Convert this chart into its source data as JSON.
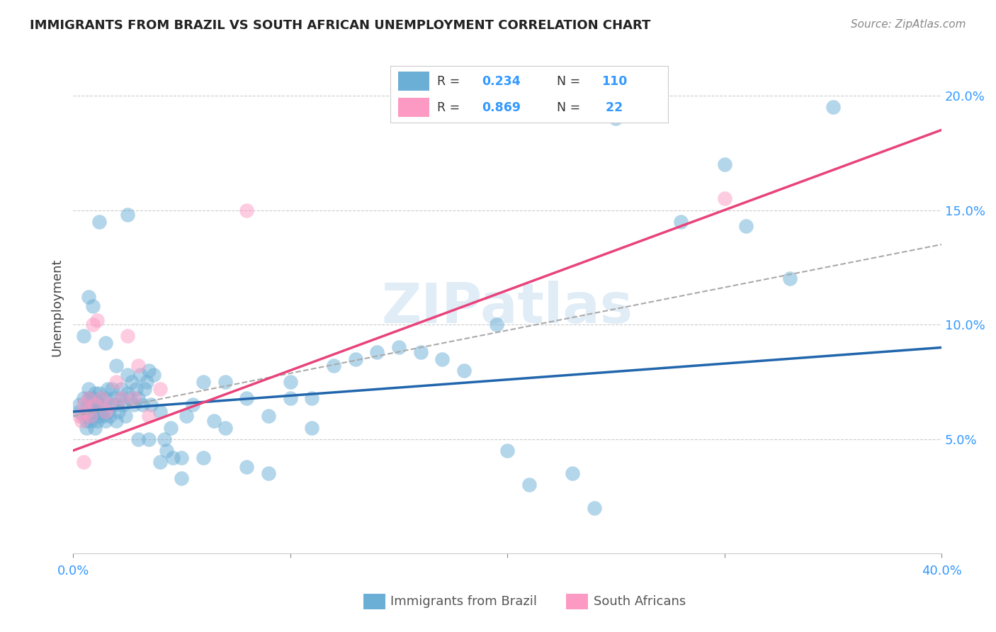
{
  "title": "IMMIGRANTS FROM BRAZIL VS SOUTH AFRICAN UNEMPLOYMENT CORRELATION CHART",
  "source": "Source: ZipAtlas.com",
  "ylabel": "Unemployment",
  "yticks": [
    0.05,
    0.1,
    0.15,
    0.2
  ],
  "ytick_labels": [
    "5.0%",
    "10.0%",
    "15.0%",
    "20.0%"
  ],
  "xlim": [
    0.0,
    0.4
  ],
  "ylim": [
    0.0,
    0.215
  ],
  "blue_color": "#6baed6",
  "pink_color": "#fc9ac3",
  "blue_line_color": "#2166ac",
  "pink_line_color": "#e8437a",
  "dash_line_color": "#aaaaaa",
  "watermark": "ZIPatlas",
  "blue_scatter_x": [
    0.003,
    0.003,
    0.005,
    0.005,
    0.006,
    0.006,
    0.006,
    0.007,
    0.007,
    0.007,
    0.007,
    0.008,
    0.008,
    0.008,
    0.009,
    0.009,
    0.009,
    0.01,
    0.01,
    0.01,
    0.01,
    0.011,
    0.011,
    0.011,
    0.012,
    0.012,
    0.012,
    0.013,
    0.013,
    0.014,
    0.014,
    0.015,
    0.015,
    0.016,
    0.016,
    0.017,
    0.018,
    0.018,
    0.019,
    0.02,
    0.02,
    0.021,
    0.022,
    0.022,
    0.023,
    0.024,
    0.025,
    0.025,
    0.026,
    0.027,
    0.028,
    0.029,
    0.03,
    0.031,
    0.032,
    0.033,
    0.034,
    0.035,
    0.036,
    0.037,
    0.04,
    0.042,
    0.043,
    0.045,
    0.046,
    0.05,
    0.052,
    0.055,
    0.06,
    0.065,
    0.07,
    0.08,
    0.09,
    0.1,
    0.11,
    0.12,
    0.13,
    0.14,
    0.15,
    0.16,
    0.17,
    0.18,
    0.195,
    0.2,
    0.21,
    0.23,
    0.24,
    0.25,
    0.28,
    0.3,
    0.31,
    0.33,
    0.35,
    0.005,
    0.007,
    0.009,
    0.012,
    0.015,
    0.02,
    0.025,
    0.03,
    0.035,
    0.04,
    0.05,
    0.06,
    0.07,
    0.08,
    0.09,
    0.1,
    0.11
  ],
  "blue_scatter_y": [
    0.062,
    0.065,
    0.06,
    0.068,
    0.055,
    0.058,
    0.062,
    0.06,
    0.065,
    0.068,
    0.072,
    0.058,
    0.062,
    0.068,
    0.06,
    0.064,
    0.068,
    0.055,
    0.062,
    0.065,
    0.07,
    0.058,
    0.062,
    0.065,
    0.06,
    0.065,
    0.07,
    0.062,
    0.068,
    0.06,
    0.065,
    0.058,
    0.068,
    0.062,
    0.072,
    0.06,
    0.065,
    0.072,
    0.068,
    0.058,
    0.065,
    0.062,
    0.068,
    0.072,
    0.065,
    0.06,
    0.07,
    0.078,
    0.068,
    0.075,
    0.065,
    0.072,
    0.068,
    0.078,
    0.065,
    0.072,
    0.075,
    0.08,
    0.065,
    0.078,
    0.062,
    0.05,
    0.045,
    0.055,
    0.042,
    0.042,
    0.06,
    0.065,
    0.075,
    0.058,
    0.055,
    0.068,
    0.06,
    0.075,
    0.068,
    0.082,
    0.085,
    0.088,
    0.09,
    0.088,
    0.085,
    0.08,
    0.1,
    0.045,
    0.03,
    0.035,
    0.02,
    0.19,
    0.145,
    0.17,
    0.143,
    0.12,
    0.195,
    0.095,
    0.112,
    0.108,
    0.145,
    0.092,
    0.082,
    0.148,
    0.05,
    0.05,
    0.04,
    0.033,
    0.042,
    0.075,
    0.038,
    0.035,
    0.068,
    0.055
  ],
  "pink_scatter_x": [
    0.003,
    0.004,
    0.005,
    0.005,
    0.006,
    0.007,
    0.008,
    0.009,
    0.01,
    0.011,
    0.013,
    0.015,
    0.017,
    0.02,
    0.022,
    0.025,
    0.028,
    0.03,
    0.035,
    0.04,
    0.08,
    0.3
  ],
  "pink_scatter_y": [
    0.06,
    0.058,
    0.065,
    0.04,
    0.062,
    0.068,
    0.06,
    0.1,
    0.065,
    0.102,
    0.068,
    0.062,
    0.065,
    0.075,
    0.068,
    0.095,
    0.068,
    0.082,
    0.06,
    0.072,
    0.15,
    0.155
  ],
  "blue_trend_x": [
    0.0,
    0.4
  ],
  "blue_trend_y": [
    0.062,
    0.09
  ],
  "pink_trend_x": [
    0.0,
    0.4
  ],
  "pink_trend_y": [
    0.045,
    0.185
  ],
  "dash_trend_x": [
    0.0,
    0.4
  ],
  "dash_trend_y": [
    0.06,
    0.135
  ]
}
